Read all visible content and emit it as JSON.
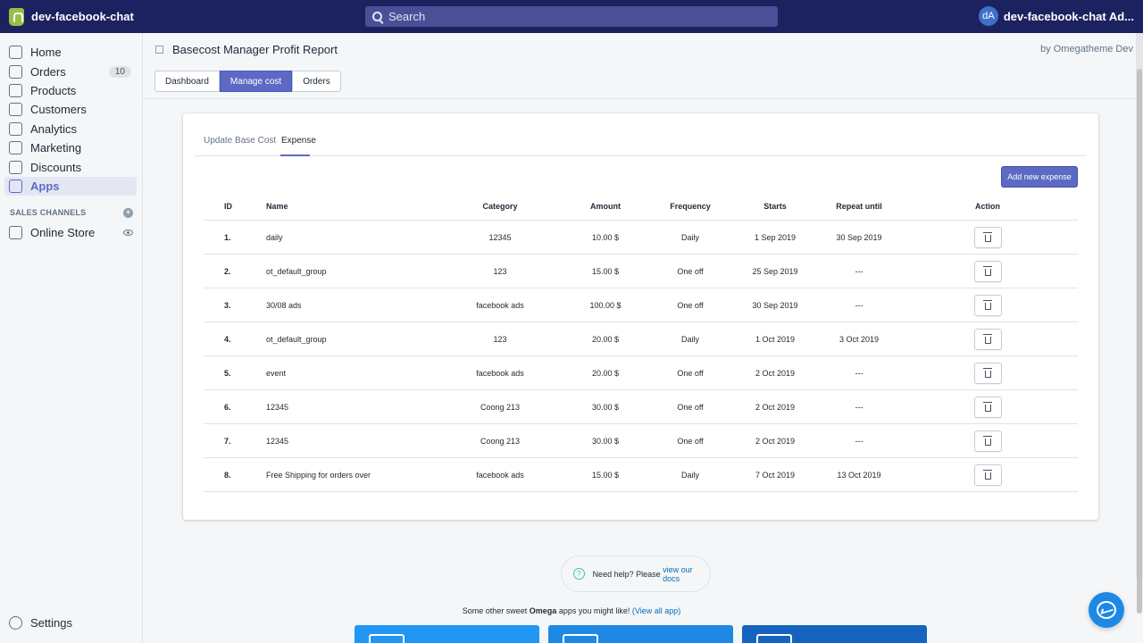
{
  "topbar": {
    "store_name": "dev-facebook-chat",
    "search_placeholder": "Search",
    "user_initials": "dA",
    "user_name": "dev-facebook-chat Ad..."
  },
  "sidebar": {
    "items": [
      {
        "label": "Home",
        "icon": "home-icon"
      },
      {
        "label": "Orders",
        "icon": "orders-icon",
        "badge": "10"
      },
      {
        "label": "Products",
        "icon": "tag-icon"
      },
      {
        "label": "Customers",
        "icon": "person-icon"
      },
      {
        "label": "Analytics",
        "icon": "bar-chart-icon"
      },
      {
        "label": "Marketing",
        "icon": "megaphone-icon"
      },
      {
        "label": "Discounts",
        "icon": "discount-icon"
      },
      {
        "label": "Apps",
        "icon": "apps-icon",
        "active": true
      }
    ],
    "channels_label": "SALES CHANNELS",
    "online_store": "Online Store",
    "settings": "Settings"
  },
  "header": {
    "title": "Basecost Manager Profit Report",
    "byline": "by Omegatheme Dev"
  },
  "tabs": [
    "Dashboard",
    "Manage cost",
    "Orders"
  ],
  "active_tab": "Manage cost",
  "card": {
    "subtabs": [
      "Update Base Cost",
      "Expense"
    ],
    "active_subtab": "Expense",
    "add_button": "Add new expense",
    "columns": {
      "id": "ID",
      "name": "Name",
      "category": "Category",
      "amount": "Amount",
      "frequency": "Frequency",
      "starts": "Starts",
      "repeat_until": "Repeat until",
      "action": "Action"
    },
    "rows": [
      {
        "id": "1.",
        "name": "daily",
        "category": "12345",
        "amount": "10.00 $",
        "frequency": "Daily",
        "starts": "1 Sep 2019",
        "repeat_until": "30 Sep 2019"
      },
      {
        "id": "2.",
        "name": "ot_default_group",
        "category": "123",
        "amount": "15.00 $",
        "frequency": "One off",
        "starts": "25 Sep 2019",
        "repeat_until": "---"
      },
      {
        "id": "3.",
        "name": "30/08 ads",
        "category": "facebook ads",
        "amount": "100.00 $",
        "frequency": "One off",
        "starts": "30 Sep 2019",
        "repeat_until": "---"
      },
      {
        "id": "4.",
        "name": "ot_default_group",
        "category": "123",
        "amount": "20.00 $",
        "frequency": "Daily",
        "starts": "1 Oct 2019",
        "repeat_until": "3 Oct 2019"
      },
      {
        "id": "5.",
        "name": "event",
        "category": "facebook ads",
        "amount": "20.00 $",
        "frequency": "One off",
        "starts": "2 Oct 2019",
        "repeat_until": "---"
      },
      {
        "id": "6.",
        "name": "12345",
        "category": "Coong 213",
        "amount": "30.00 $",
        "frequency": "One off",
        "starts": "2 Oct 2019",
        "repeat_until": "---"
      },
      {
        "id": "7.",
        "name": "12345",
        "category": "Coong 213",
        "amount": "30.00 $",
        "frequency": "One off",
        "starts": "2 Oct 2019",
        "repeat_until": "---"
      },
      {
        "id": "8.",
        "name": "Free Shipping for orders over",
        "category": "facebook ads",
        "amount": "15.00 $",
        "frequency": "Daily",
        "starts": "7 Oct 2019",
        "repeat_until": "13 Oct 2019"
      }
    ]
  },
  "footer": {
    "help_text": "Need help? Please ",
    "help_link": "view our docs",
    "promo_pre": "Some other sweet ",
    "promo_brand": "Omega",
    "promo_post": " apps you might like! ",
    "promo_link": "(View all app)"
  },
  "colors": {
    "topbar": "#1c2260",
    "accent": "#5c6ac4",
    "card_1": "#2196f3",
    "card_2": "#1e88e5",
    "card_3": "#1565c0"
  }
}
